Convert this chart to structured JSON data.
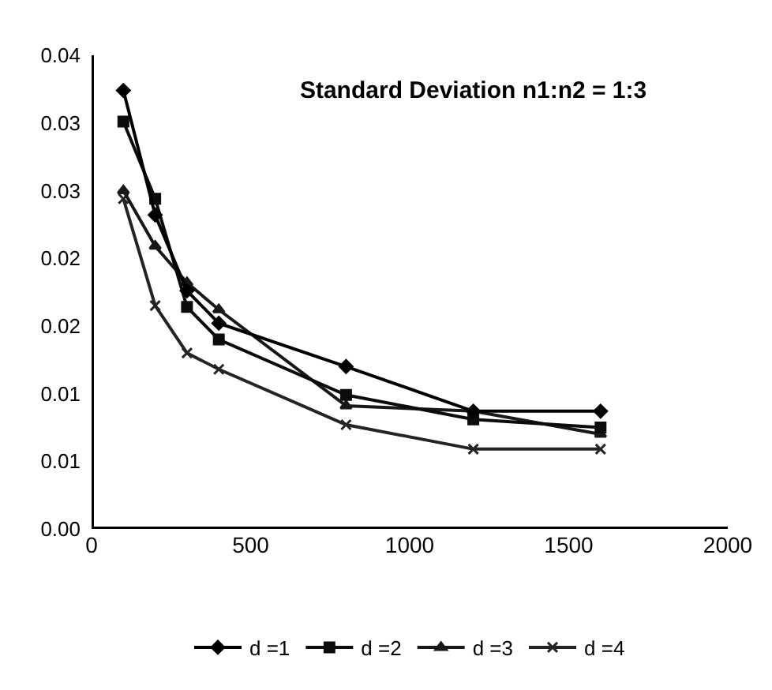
{
  "chart_data": {
    "type": "line",
    "title": "Standard Deviation n1:n2 = 1:3",
    "x": [
      100,
      200,
      300,
      400,
      800,
      1200,
      1600
    ],
    "series": [
      {
        "name": "d =1",
        "color": "#000000",
        "marker": "diamond",
        "values": [
          0.0324,
          0.0232,
          0.0176,
          0.0152,
          0.012,
          0.0087,
          0.0087
        ]
      },
      {
        "name": "d =2",
        "color": "#0c0c0c",
        "marker": "square",
        "values": [
          0.0301,
          0.0244,
          0.0164,
          0.014,
          0.0099,
          0.0081,
          0.0075
        ]
      },
      {
        "name": "d =3",
        "color": "#181818",
        "marker": "triangle",
        "values": [
          0.025,
          0.0209,
          0.0182,
          0.0162,
          0.0091,
          0.0087,
          0.007
        ]
      },
      {
        "name": "d =4",
        "color": "#242424",
        "marker": "cross",
        "values": [
          0.0244,
          0.0165,
          0.013,
          0.0118,
          0.0077,
          0.0059,
          0.0059
        ]
      }
    ],
    "xlim": [
      0,
      2000
    ],
    "xticks": [
      0,
      500,
      1000,
      1500,
      2000
    ],
    "ylim": [
      0,
      0.035
    ],
    "yticks": [
      {
        "value": 0,
        "label": "0.00"
      },
      {
        "value": 0.005,
        "label": "0.01"
      },
      {
        "value": 0.01,
        "label": "0.01"
      },
      {
        "value": 0.015,
        "label": "0.02"
      },
      {
        "value": 0.02,
        "label": "0.02"
      },
      {
        "value": 0.025,
        "label": "0.03"
      },
      {
        "value": 0.03,
        "label": "0.03"
      },
      {
        "value": 0.035,
        "label": "0.04"
      }
    ],
    "grid": false,
    "legend": "bottom",
    "line_style": "solid"
  }
}
